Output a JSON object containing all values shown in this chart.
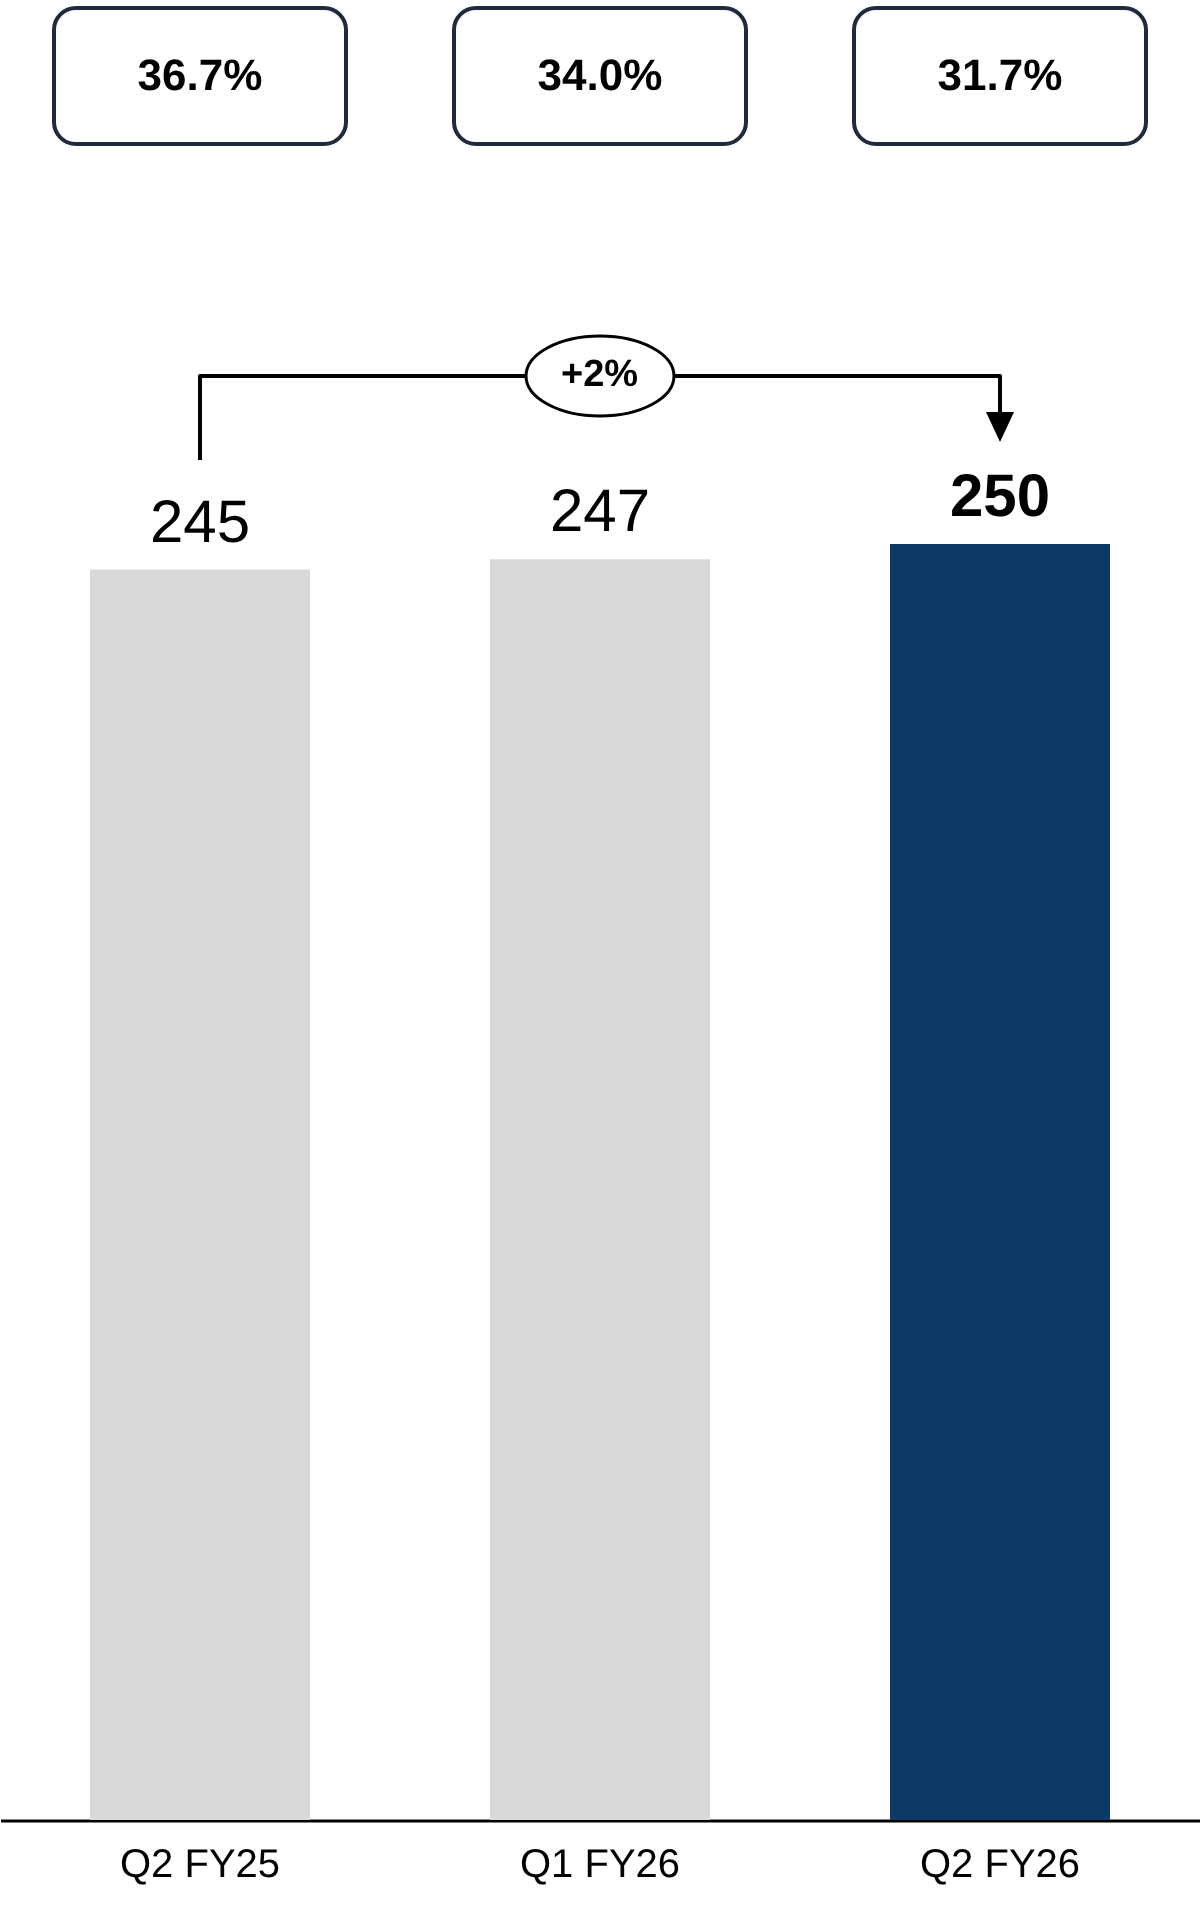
{
  "chart_data": {
    "type": "bar",
    "categories": [
      "Q2 FY25",
      "Q1 FY26",
      "Q2 FY26"
    ],
    "values": [
      245,
      247,
      250
    ],
    "colors": [
      "#d9d9d9",
      "#d9d9d9",
      "#0b3a66"
    ],
    "data_labels": true,
    "annotations": [
      "36.7%",
      "34.0%",
      "31.7%",
      "+2%"
    ]
  }
}
